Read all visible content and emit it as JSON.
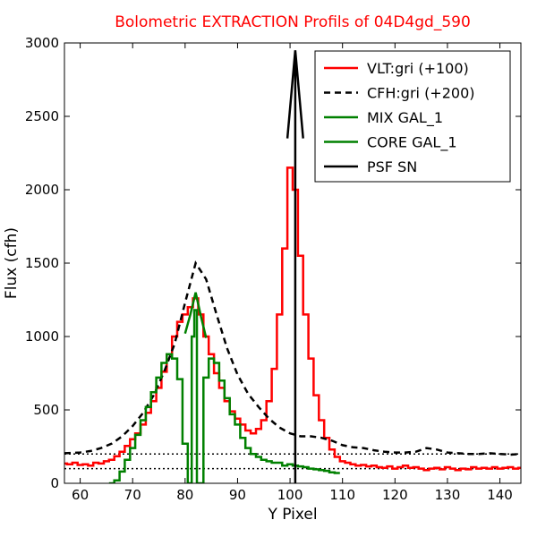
{
  "chart_data": {
    "type": "line",
    "title": "Bolometric EXTRACTION Profils of 04D4gd_590",
    "title_color": "#ff0000",
    "xlabel": "Y Pixel",
    "ylabel": "Flux (cfh)",
    "xlim": [
      57,
      144
    ],
    "ylim": [
      0,
      3000
    ],
    "xticks": [
      60,
      70,
      80,
      90,
      100,
      110,
      120,
      130,
      140
    ],
    "yticks": [
      0,
      500,
      1000,
      1500,
      2000,
      2500,
      3000
    ],
    "grid": false,
    "legend_position": "top-right",
    "series": [
      {
        "name": "VLT:gri (+100)",
        "color": "#ff0000",
        "style": "step",
        "x": [
          57,
          58,
          59,
          60,
          61,
          62,
          63,
          64,
          65,
          66,
          67,
          68,
          69,
          70,
          71,
          72,
          73,
          74,
          75,
          76,
          77,
          78,
          79,
          80,
          81,
          82,
          83,
          84,
          85,
          86,
          87,
          88,
          89,
          90,
          91,
          92,
          93,
          94,
          95,
          96,
          97,
          98,
          99,
          100,
          101,
          102,
          103,
          104,
          105,
          106,
          107,
          108,
          109,
          110,
          111,
          112,
          113,
          114,
          115,
          116,
          117,
          118,
          119,
          120,
          121,
          122,
          123,
          124,
          125,
          126,
          127,
          128,
          129,
          130,
          131,
          132,
          133,
          134,
          135,
          136,
          137,
          138,
          139,
          140,
          141,
          142,
          143,
          144
        ],
        "y": [
          135,
          130,
          140,
          125,
          130,
          120,
          140,
          135,
          150,
          160,
          185,
          215,
          255,
          300,
          340,
          400,
          480,
          560,
          650,
          760,
          880,
          1000,
          1100,
          1150,
          1200,
          1260,
          1150,
          1000,
          880,
          750,
          650,
          560,
          490,
          440,
          400,
          360,
          340,
          370,
          430,
          560,
          780,
          1150,
          1600,
          2150,
          2000,
          1550,
          1150,
          850,
          600,
          430,
          310,
          230,
          180,
          150,
          140,
          130,
          120,
          125,
          115,
          120,
          110,
          105,
          115,
          100,
          110,
          120,
          105,
          110,
          100,
          90,
          100,
          105,
          95,
          110,
          100,
          90,
          100,
          95,
          110,
          100,
          105,
          100,
          110,
          100,
          105,
          110,
          100,
          105
        ]
      },
      {
        "name": "CFH:gri (+200)",
        "color": "#000000",
        "style": "dashed",
        "x": [
          57,
          60,
          62,
          64,
          66,
          68,
          70,
          72,
          74,
          76,
          78,
          80,
          82,
          84,
          86,
          88,
          90,
          92,
          94,
          96,
          98,
          100,
          102,
          104,
          106,
          108,
          110,
          112,
          114,
          116,
          118,
          120,
          122,
          124,
          126,
          128,
          130,
          132,
          134,
          136,
          138,
          140,
          142,
          144
        ],
        "y": [
          205,
          210,
          220,
          240,
          270,
          320,
          390,
          480,
          600,
          760,
          950,
          1230,
          1500,
          1390,
          1150,
          920,
          740,
          610,
          520,
          440,
          380,
          340,
          320,
          320,
          310,
          290,
          260,
          245,
          240,
          225,
          215,
          210,
          210,
          215,
          240,
          230,
          210,
          205,
          200,
          200,
          205,
          200,
          195,
          200
        ]
      },
      {
        "name": "MIX GAL_1",
        "color": "#008000",
        "style": "step",
        "x": [
          66,
          67,
          68,
          69,
          70,
          71,
          72,
          73,
          74,
          75,
          76,
          77,
          78,
          79,
          80,
          81,
          81.5,
          82,
          82.5,
          83,
          84,
          85,
          86,
          87,
          88,
          89,
          90,
          91,
          92,
          93,
          94,
          95,
          96,
          97,
          98,
          99,
          100,
          101,
          102,
          103,
          104,
          105,
          106,
          107,
          108,
          109
        ],
        "y": [
          0,
          20,
          80,
          160,
          240,
          330,
          430,
          520,
          620,
          720,
          820,
          880,
          850,
          710,
          270,
          0,
          1000,
          1180,
          0,
          0,
          720,
          850,
          820,
          700,
          580,
          470,
          400,
          310,
          240,
          200,
          180,
          160,
          150,
          140,
          140,
          120,
          130,
          120,
          115,
          110,
          100,
          95,
          90,
          85,
          75,
          70
        ]
      },
      {
        "name": "CORE GAL_1",
        "color": "#008000",
        "style": "solid",
        "x": [
          80,
          81,
          82,
          83,
          84
        ],
        "y": [
          1020,
          1150,
          1300,
          1140,
          990
        ]
      },
      {
        "name": "PSF SN",
        "color": "#000000",
        "style": "solid",
        "x": [
          101,
          101,
          99.5,
          101,
          102.5
        ],
        "y": [
          0,
          2950,
          2350,
          2950,
          2350
        ]
      }
    ],
    "reference_lines": [
      {
        "y": 100,
        "style": "dotted",
        "color": "#000000"
      },
      {
        "y": 200,
        "style": "dotted",
        "color": "#000000"
      }
    ]
  }
}
